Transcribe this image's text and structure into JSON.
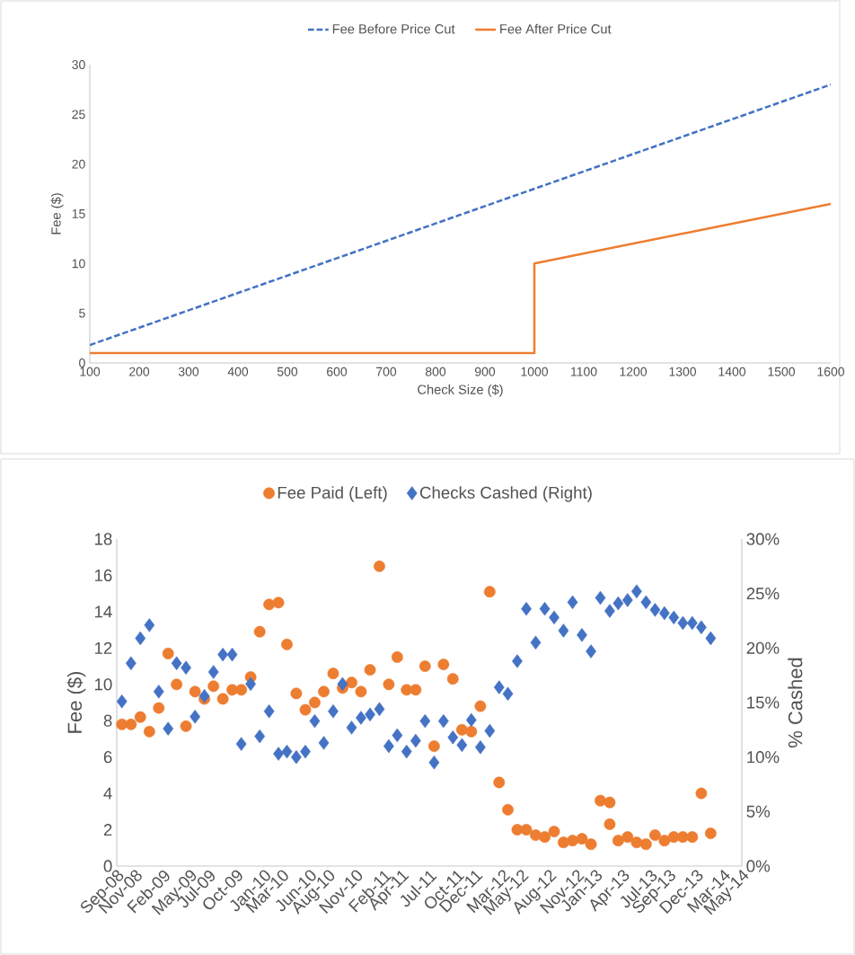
{
  "chart_data": [
    {
      "type": "line",
      "xlabel": "Check Size ($)",
      "ylabel": "Fee ($)",
      "legend": "top",
      "xlim": [
        100,
        1600
      ],
      "xticks": [
        100,
        200,
        300,
        400,
        500,
        600,
        700,
        800,
        900,
        1000,
        1100,
        1200,
        1300,
        1400,
        1500,
        1600
      ],
      "ylim": [
        0,
        30
      ],
      "yticks": [
        0,
        5,
        10,
        15,
        20,
        25,
        30
      ],
      "series": [
        {
          "name": "Fee Before Price Cut",
          "color": "#4472c4",
          "line_style": "dashed",
          "x": [
            100,
            1600
          ],
          "values": [
            1.8,
            28
          ]
        },
        {
          "name": "Fee After Price Cut",
          "color": "#ed7d31",
          "line_style": "solid",
          "x": [
            100,
            1000,
            1000,
            1600
          ],
          "values": [
            1,
            1,
            10,
            16
          ]
        }
      ]
    },
    {
      "type": "scatter",
      "ylabel": "Fee ($)",
      "y2label": "% Cashed",
      "legend": "top",
      "xlim": [
        "2008-09-01",
        "2014-05-01"
      ],
      "xticks": [
        {
          "value": "2008-09-01",
          "label": "Sep-08"
        },
        {
          "value": "2008-11-01",
          "label": "Nov-08"
        },
        {
          "value": "2009-02-01",
          "label": "Feb-09"
        },
        {
          "value": "2009-05-01",
          "label": "May-09"
        },
        {
          "value": "2009-07-01",
          "label": "Jul-09"
        },
        {
          "value": "2009-10-01",
          "label": "Oct-09"
        },
        {
          "value": "2010-01-01",
          "label": "Jan-10"
        },
        {
          "value": "2010-03-01",
          "label": "Mar-10"
        },
        {
          "value": "2010-06-01",
          "label": "Jun-10"
        },
        {
          "value": "2010-08-01",
          "label": "Aug-10"
        },
        {
          "value": "2010-11-01",
          "label": "Nov-10"
        },
        {
          "value": "2011-02-01",
          "label": "Feb-11"
        },
        {
          "value": "2011-04-01",
          "label": "Apr-11"
        },
        {
          "value": "2011-07-01",
          "label": "Jul-11"
        },
        {
          "value": "2011-10-01",
          "label": "Oct-11"
        },
        {
          "value": "2011-12-01",
          "label": "Dec-11"
        },
        {
          "value": "2012-03-01",
          "label": "Mar-12"
        },
        {
          "value": "2012-05-01",
          "label": "May-12"
        },
        {
          "value": "2012-08-01",
          "label": "Aug-12"
        },
        {
          "value": "2012-11-01",
          "label": "Nov-12"
        },
        {
          "value": "2013-01-01",
          "label": "Jan-13"
        },
        {
          "value": "2013-04-01",
          "label": "Apr-13"
        },
        {
          "value": "2013-07-01",
          "label": "Jul-13"
        },
        {
          "value": "2013-09-01",
          "label": "Sep-13"
        },
        {
          "value": "2013-12-01",
          "label": "Dec-13"
        },
        {
          "value": "2014-03-01",
          "label": "Mar-14"
        },
        {
          "value": "2014-05-01",
          "label": "May-14"
        }
      ],
      "ylim": [
        0,
        18
      ],
      "yticks": [
        0,
        2,
        4,
        6,
        8,
        10,
        12,
        14,
        16,
        18
      ],
      "y2lim": [
        0,
        30
      ],
      "y2ticks": [
        {
          "value": 0,
          "label": "0%"
        },
        {
          "value": 5,
          "label": "5%"
        },
        {
          "value": 10,
          "label": "10%"
        },
        {
          "value": 15,
          "label": "15%"
        },
        {
          "value": 20,
          "label": "20%"
        },
        {
          "value": 25,
          "label": "25%"
        },
        {
          "value": 30,
          "label": "30%"
        }
      ],
      "series": [
        {
          "name": "Fee Paid (Left)",
          "color": "#ed7d31",
          "marker": "circle",
          "x": [
            "2008-09-18",
            "2008-10-18",
            "2008-11-18",
            "2008-12-18",
            "2009-01-18",
            "2009-02-18",
            "2009-03-18",
            "2009-04-18",
            "2009-05-18",
            "2009-06-18",
            "2009-07-18",
            "2009-08-18",
            "2009-09-18",
            "2009-10-18",
            "2009-11-18",
            "2009-12-18",
            "2010-01-18",
            "2010-02-18",
            "2010-03-18",
            "2010-04-18",
            "2010-05-18",
            "2010-06-18",
            "2010-07-18",
            "2010-08-18",
            "2010-09-18",
            "2010-10-18",
            "2010-11-18",
            "2010-12-18",
            "2011-01-18",
            "2011-02-18",
            "2011-03-18",
            "2011-04-18",
            "2011-05-18",
            "2011-06-18",
            "2011-07-18",
            "2011-08-18",
            "2011-09-18",
            "2011-10-18",
            "2011-11-18",
            "2011-12-18",
            "2012-01-18",
            "2012-02-18",
            "2012-03-18",
            "2012-04-18",
            "2012-05-18",
            "2012-06-18",
            "2012-07-18",
            "2012-08-18",
            "2012-09-18",
            "2012-10-18",
            "2012-11-18",
            "2012-12-18",
            "2013-01-18",
            "2013-02-18",
            "2013-02-18",
            "2013-03-18",
            "2013-04-18",
            "2013-05-18",
            "2013-06-18",
            "2013-07-18",
            "2013-08-18",
            "2013-09-18",
            "2013-10-18",
            "2013-11-18",
            "2013-12-18",
            "2014-01-18"
          ],
          "values": [
            7.8,
            7.8,
            8.2,
            7.4,
            8.7,
            11.7,
            10.0,
            7.7,
            9.6,
            9.2,
            9.9,
            9.2,
            9.7,
            9.7,
            10.4,
            12.9,
            14.4,
            14.5,
            12.2,
            9.5,
            8.6,
            9.0,
            9.6,
            10.6,
            9.8,
            10.1,
            9.6,
            10.8,
            16.5,
            10.0,
            11.5,
            9.7,
            9.7,
            11.0,
            6.6,
            11.1,
            10.3,
            7.5,
            7.4,
            8.8,
            15.1,
            4.6,
            3.1,
            2.0,
            2.0,
            1.7,
            1.6,
            1.9,
            1.3,
            1.4,
            1.5,
            1.2,
            3.6,
            3.5,
            2.3,
            1.4,
            1.6,
            1.3,
            1.2,
            1.7,
            1.4,
            1.6,
            1.6,
            1.6,
            4.0,
            1.8
          ]
        },
        {
          "name": "Checks Cashed (Right)",
          "color": "#4472c4",
          "marker": "diamond",
          "axis": "y2",
          "x": [
            "2008-09-18",
            "2008-10-18",
            "2008-11-18",
            "2008-12-18",
            "2009-01-18",
            "2009-02-18",
            "2009-03-18",
            "2009-04-18",
            "2009-05-18",
            "2009-06-18",
            "2009-07-18",
            "2009-08-18",
            "2009-09-18",
            "2009-10-18",
            "2009-11-18",
            "2009-12-18",
            "2010-01-18",
            "2010-02-18",
            "2010-03-18",
            "2010-04-18",
            "2010-05-18",
            "2010-06-18",
            "2010-07-18",
            "2010-08-18",
            "2010-09-18",
            "2010-10-18",
            "2010-11-18",
            "2010-12-18",
            "2011-01-18",
            "2011-02-18",
            "2011-03-18",
            "2011-04-18",
            "2011-05-18",
            "2011-06-18",
            "2011-07-18",
            "2011-08-18",
            "2011-09-18",
            "2011-10-18",
            "2011-11-18",
            "2011-12-18",
            "2012-01-18",
            "2012-02-18",
            "2012-03-18",
            "2012-04-18",
            "2012-05-18",
            "2012-06-18",
            "2012-07-18",
            "2012-08-18",
            "2012-09-18",
            "2012-10-18",
            "2012-11-18",
            "2012-12-18",
            "2013-01-18",
            "2013-02-18",
            "2013-03-18",
            "2013-04-18",
            "2013-05-18",
            "2013-06-18",
            "2013-07-18",
            "2013-08-18",
            "2013-09-18",
            "2013-10-18",
            "2013-11-18",
            "2013-12-18",
            "2014-01-18"
          ],
          "values": [
            15.1,
            18.6,
            20.9,
            22.1,
            16.0,
            12.6,
            18.6,
            18.2,
            13.7,
            15.6,
            17.8,
            19.4,
            19.4,
            11.2,
            16.7,
            11.9,
            14.2,
            10.3,
            10.5,
            10.0,
            10.5,
            13.3,
            11.3,
            14.2,
            16.7,
            12.7,
            13.6,
            13.9,
            14.4,
            11.0,
            12.0,
            10.5,
            11.5,
            13.3,
            9.5,
            13.3,
            11.8,
            11.1,
            13.4,
            10.9,
            12.4,
            16.4,
            15.8,
            18.8,
            23.6,
            20.5,
            23.6,
            22.8,
            21.6,
            24.2,
            21.2,
            19.7,
            24.6,
            23.4,
            24.1,
            24.4,
            25.2,
            24.2,
            23.5,
            23.2,
            22.8,
            22.3,
            22.3,
            21.9,
            20.9
          ]
        }
      ]
    }
  ]
}
